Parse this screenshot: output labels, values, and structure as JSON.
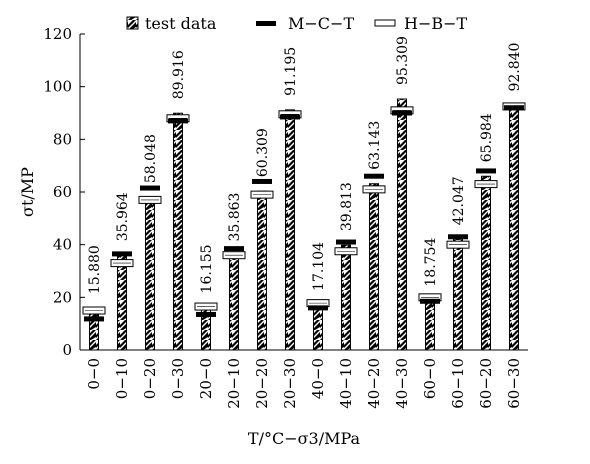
{
  "chart_data": {
    "type": "bar",
    "categories": [
      "0−0",
      "0−10",
      "0−20",
      "0−30",
      "20−0",
      "20−10",
      "20−20",
      "20−30",
      "40−0",
      "40−10",
      "40−20",
      "40−30",
      "60−0",
      "60−10",
      "60−20",
      "60−30"
    ],
    "title": "",
    "xlabel": "T/°C−σ3/MPa",
    "ylabel": "σt/MP",
    "ylim": [
      0,
      120
    ],
    "yticks": [
      0,
      20,
      40,
      60,
      80,
      100,
      120
    ],
    "grid": false,
    "legend_position": "top",
    "series": [
      {
        "name": "test data",
        "kind": "bar",
        "values": [
          15.88,
          35.964,
          58.048,
          89.916,
          16.155,
          35.863,
          60.309,
          91.195,
          17.104,
          39.813,
          63.143,
          95.309,
          18.754,
          42.047,
          65.984,
          92.84
        ],
        "labels": [
          "15.880",
          "35.964",
          "58.048",
          "89.916",
          "16.155",
          "35.863",
          "60.309",
          "91.195",
          "17.104",
          "39.813",
          "63.143",
          "95.309",
          "18.754",
          "42.047",
          "65.984",
          "92.840"
        ]
      },
      {
        "name": "M−C−T",
        "kind": "marker",
        "style": "filled",
        "values": [
          11.8,
          36.5,
          61.5,
          87.0,
          13.5,
          38.5,
          64.0,
          88.5,
          16.0,
          41.0,
          66.0,
          90.0,
          18.5,
          43.0,
          68.0,
          92.0
        ]
      },
      {
        "name": "H−B−T",
        "kind": "marker",
        "style": "hollow",
        "values": [
          15.0,
          33.0,
          57.0,
          88.0,
          16.5,
          36.0,
          59.0,
          89.5,
          17.8,
          37.5,
          61.0,
          91.0,
          20.0,
          40.0,
          63.0,
          92.5
        ]
      }
    ]
  }
}
